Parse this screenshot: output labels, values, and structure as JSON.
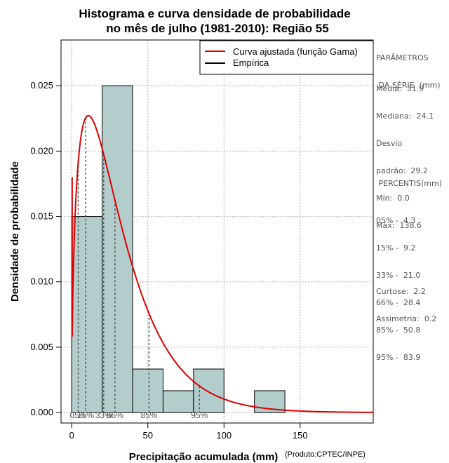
{
  "colors": {
    "bar_fill": "#b3cccc",
    "curve": "#e00000",
    "grid": "#b0b0b0",
    "axis": "#000000",
    "side_text": "#555555"
  },
  "chart_data": {
    "type": "bar",
    "title_line1": "Histograma e curva densidade de probabilidade",
    "title_line2": "no mês de julho (1981-2010): Região 55",
    "xlabel": "Precipitação acumulada (mm)",
    "ylabel": "Densidade de probabilidade",
    "credit": "(Produto:CPTEC/INPE)",
    "xlim": [
      -7,
      198
    ],
    "ylim": [
      -0.0008,
      0.0285
    ],
    "x_ticks": [
      0,
      50,
      100,
      150
    ],
    "x_tick_labels": [
      "0",
      "50",
      "100",
      "150"
    ],
    "y_ticks": [
      0.0,
      0.005,
      0.01,
      0.015,
      0.02,
      0.025
    ],
    "y_tick_labels": [
      "0.000",
      "0.005",
      "0.010",
      "0.015",
      "0.020",
      "0.025"
    ],
    "bins": [
      {
        "start": 0,
        "end": 20,
        "density": 0.015
      },
      {
        "start": 20,
        "end": 40,
        "density": 0.025
      },
      {
        "start": 40,
        "end": 60,
        "density": 0.00333
      },
      {
        "start": 60,
        "end": 80,
        "density": 0.00167
      },
      {
        "start": 80,
        "end": 100,
        "density": 0.00333
      },
      {
        "start": 100,
        "end": 120,
        "density": 0.0
      },
      {
        "start": 120,
        "end": 140,
        "density": 0.00167
      }
    ],
    "gamma_fit": {
      "shape": 1.52,
      "scale": 21.0
    },
    "percentile_markers": [
      {
        "label": "05%",
        "x": 4.3
      },
      {
        "label": "15%",
        "x": 9.2
      },
      {
        "label": "33%",
        "x": 21.0
      },
      {
        "label": "66%",
        "x": 28.4
      },
      {
        "label": "85%",
        "x": 50.8
      },
      {
        "label": "95%",
        "x": 83.9
      }
    ],
    "legend": {
      "position": "top-right",
      "entries": [
        {
          "label": "Curva ajustada (função Gama)",
          "color": "#e00000"
        },
        {
          "label": "Empírica",
          "color": "#000000"
        }
      ]
    }
  },
  "sidebar": {
    "params_title": [
      "PARÂMETROS",
      " DA SÉRIE  (mm)"
    ],
    "params": [
      "Média:  31.9",
      "Mediana:  24.1",
      "Desvio",
      "padrão:  29.2",
      "Mín:  0.0",
      "Máx:  138.6"
    ],
    "percentis_title": " PERCENTIS(mm)",
    "percentis": [
      "05% -  4.3",
      "15% -  9.2",
      "33% -  21.0",
      "66% -  28.4",
      "85% -  50.8",
      "95% -  83.9"
    ],
    "stats": [
      "Curtose:  2.2",
      "Assimetria:  0.2"
    ]
  }
}
